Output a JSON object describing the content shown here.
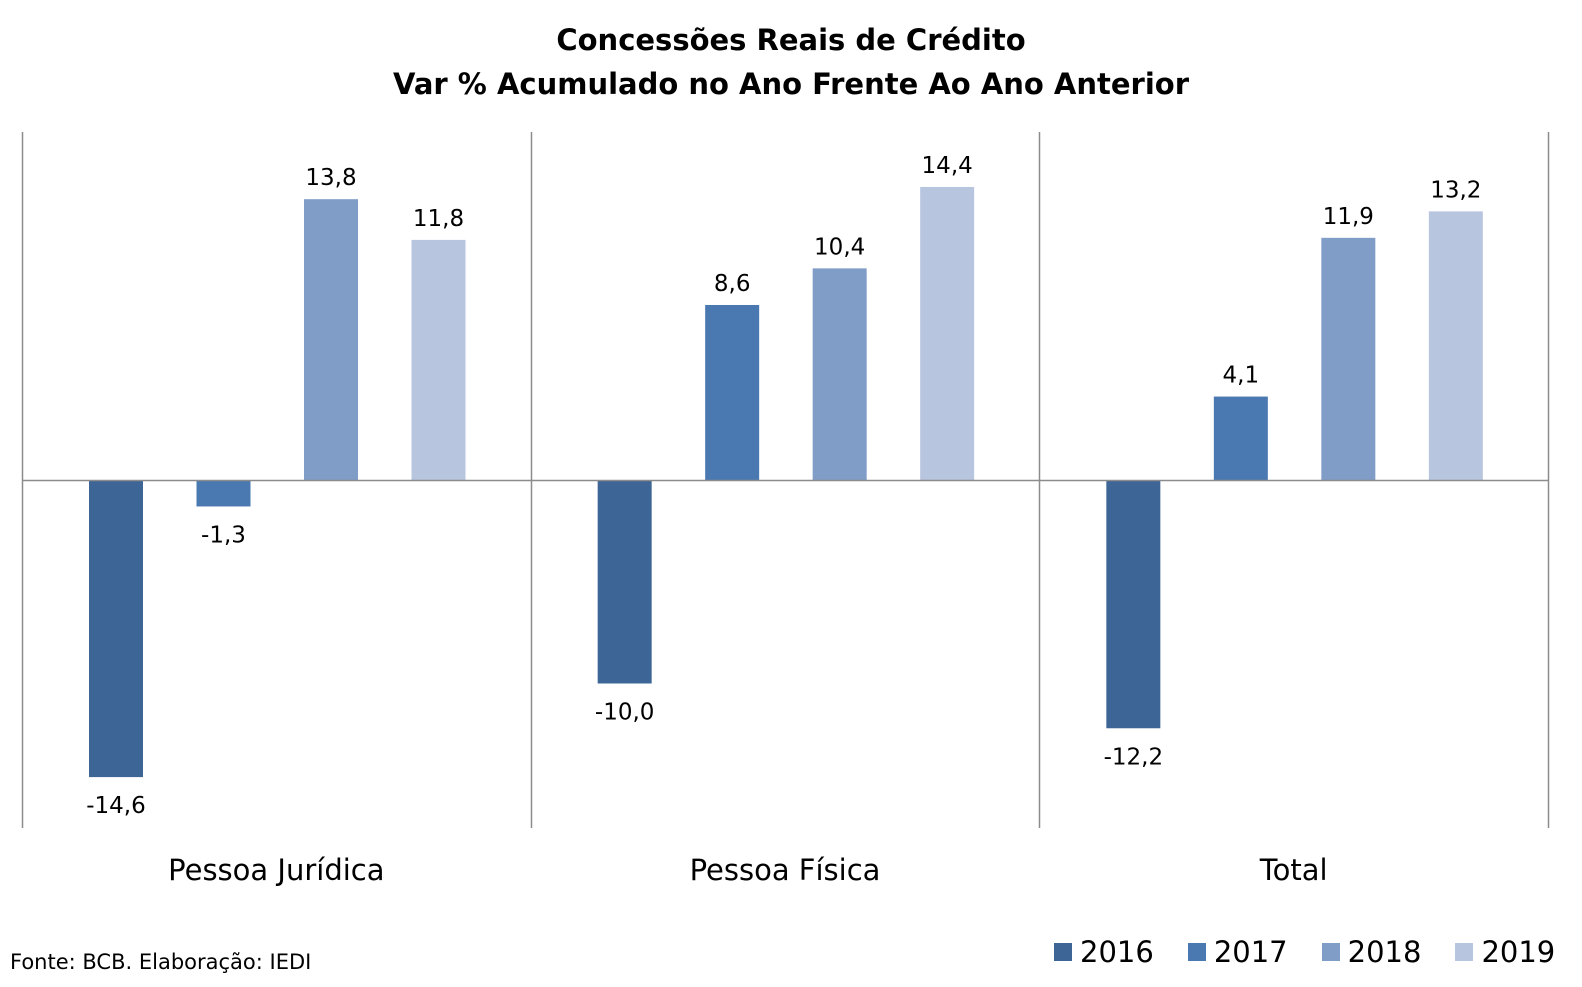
{
  "chart_data": {
    "type": "bar",
    "title": [
      "Concessões Reais de Crédito",
      "Var % Acumulado no Ano Frente Ao Ano Anterior"
    ],
    "categories": [
      "Pessoa Jurídica",
      "Pessoa Física",
      "Total"
    ],
    "series": [
      {
        "name": "2016",
        "color": "#3d6595",
        "values": [
          -14.6,
          -10.0,
          -12.2
        ],
        "labels": [
          "-14,6",
          "-10,0",
          "-12,2"
        ]
      },
      {
        "name": "2017",
        "color": "#4a78b0",
        "values": [
          -1.3,
          8.6,
          4.1
        ],
        "labels": [
          "-1,3",
          "8,6",
          "4,1"
        ]
      },
      {
        "name": "2018",
        "color": "#809dc8",
        "values": [
          13.8,
          10.4,
          11.9
        ],
        "labels": [
          "13,8",
          "10,4",
          "11,9"
        ]
      },
      {
        "name": "2019",
        "color": "#b8c5df",
        "values": [
          11.8,
          14.4,
          13.2
        ],
        "labels": [
          "11,8",
          "14,4",
          "13,2"
        ]
      }
    ],
    "ylim": [
      -17.1,
      17.1
    ],
    "grid": false,
    "legend": "bottom-right",
    "source": "Fonte: BCB. Elaboração: IEDI"
  }
}
